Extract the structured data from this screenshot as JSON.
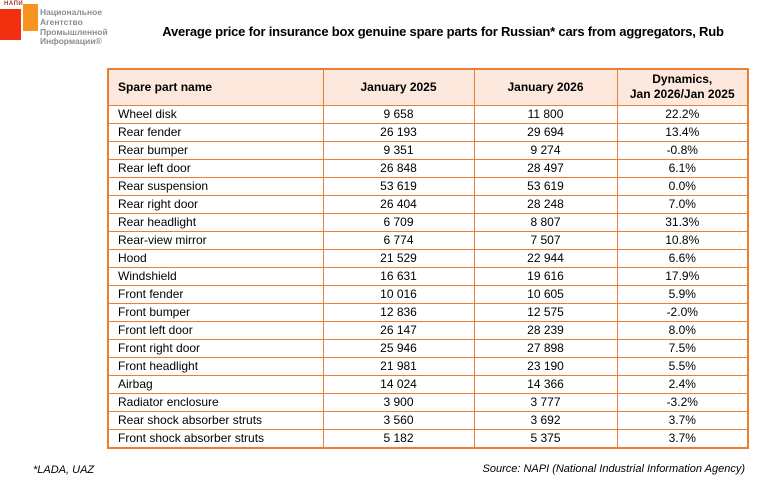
{
  "logo": {
    "abbr": "НАПИ",
    "lines": [
      "Национальное",
      "Агентство",
      "Промышленной",
      "Информации®"
    ]
  },
  "title": "Average price for insurance box genuine spare parts for Russian* cars from aggregators, Rub",
  "table": {
    "headers": [
      "Spare part name",
      "January 2025",
      "January 2026",
      "Dynamics,\nJan 2026/Jan 2025"
    ],
    "rows": [
      [
        "Wheel disk",
        "9 658",
        "11 800",
        "22.2%"
      ],
      [
        "Rear fender",
        "26 193",
        "29 694",
        "13.4%"
      ],
      [
        "Rear bumper",
        "9 351",
        "9 274",
        "-0.8%"
      ],
      [
        "Rear left door",
        "26 848",
        "28 497",
        "6.1%"
      ],
      [
        "Rear suspension",
        "53 619",
        "53 619",
        "0.0%"
      ],
      [
        "Rear right door",
        "26 404",
        "28 248",
        "7.0%"
      ],
      [
        "Rear headlight",
        "6 709",
        "8 807",
        "31.3%"
      ],
      [
        "Rear-view mirror",
        "6 774",
        "7 507",
        "10.8%"
      ],
      [
        "Hood",
        "21 529",
        "22 944",
        "6.6%"
      ],
      [
        "Windshield",
        "16 631",
        "19 616",
        "17.9%"
      ],
      [
        "Front fender",
        "10 016",
        "10 605",
        "5.9%"
      ],
      [
        "Front bumper",
        "12 836",
        "12 575",
        "-2.0%"
      ],
      [
        "Front left door",
        "26 147",
        "28 239",
        "8.0%"
      ],
      [
        "Front right door",
        "25 946",
        "27 898",
        "7.5%"
      ],
      [
        "Front headlight",
        "21 981",
        "23 190",
        "5.5%"
      ],
      [
        "Airbag",
        "14 024",
        "14 366",
        "2.4%"
      ],
      [
        "Radiator enclosure",
        "3 900",
        "3 777",
        "-3.2%"
      ],
      [
        "Rear shock absorber struts",
        "3 560",
        "3 692",
        "3.7%"
      ],
      [
        "Front shock absorber struts",
        "5 182",
        "5 375",
        "3.7%"
      ]
    ]
  },
  "footnote": "*LADA, UAZ",
  "source": "Source: NAPI (National Industrial Information Agency)",
  "colors": {
    "table_border": "#ED7D31",
    "header_bg": "#FCE8DC",
    "logo_red": "#F2300F",
    "logo_orange": "#F79421",
    "logo_text_gray": "#8C8C8C"
  },
  "chart_data": {
    "type": "table",
    "title": "Average price for insurance box genuine spare parts for Russian* cars from aggregators, Rub",
    "columns": [
      "Spare part name",
      "January 2025",
      "January 2026",
      "Dynamics, Jan 2026/Jan 2025"
    ],
    "rows": [
      {
        "name": "Wheel disk",
        "jan_2025": 9658,
        "jan_2026": 11800,
        "dynamics_pct": 22.2
      },
      {
        "name": "Rear fender",
        "jan_2025": 26193,
        "jan_2026": 29694,
        "dynamics_pct": 13.4
      },
      {
        "name": "Rear bumper",
        "jan_2025": 9351,
        "jan_2026": 9274,
        "dynamics_pct": -0.8
      },
      {
        "name": "Rear left door",
        "jan_2025": 26848,
        "jan_2026": 28497,
        "dynamics_pct": 6.1
      },
      {
        "name": "Rear suspension",
        "jan_2025": 53619,
        "jan_2026": 53619,
        "dynamics_pct": 0.0
      },
      {
        "name": "Rear right door",
        "jan_2025": 26404,
        "jan_2026": 28248,
        "dynamics_pct": 7.0
      },
      {
        "name": "Rear headlight",
        "jan_2025": 6709,
        "jan_2026": 8807,
        "dynamics_pct": 31.3
      },
      {
        "name": "Rear-view mirror",
        "jan_2025": 6774,
        "jan_2026": 7507,
        "dynamics_pct": 10.8
      },
      {
        "name": "Hood",
        "jan_2025": 21529,
        "jan_2026": 22944,
        "dynamics_pct": 6.6
      },
      {
        "name": "Windshield",
        "jan_2025": 16631,
        "jan_2026": 19616,
        "dynamics_pct": 17.9
      },
      {
        "name": "Front fender",
        "jan_2025": 10016,
        "jan_2026": 10605,
        "dynamics_pct": 5.9
      },
      {
        "name": "Front bumper",
        "jan_2025": 12836,
        "jan_2026": 12575,
        "dynamics_pct": -2.0
      },
      {
        "name": "Front left door",
        "jan_2025": 26147,
        "jan_2026": 28239,
        "dynamics_pct": 8.0
      },
      {
        "name": "Front right door",
        "jan_2025": 25946,
        "jan_2026": 27898,
        "dynamics_pct": 7.5
      },
      {
        "name": "Front headlight",
        "jan_2025": 21981,
        "jan_2026": 23190,
        "dynamics_pct": 5.5
      },
      {
        "name": "Airbag",
        "jan_2025": 14024,
        "jan_2026": 14366,
        "dynamics_pct": 2.4
      },
      {
        "name": "Radiator enclosure",
        "jan_2025": 3900,
        "jan_2026": 3777,
        "dynamics_pct": -3.2
      },
      {
        "name": "Rear shock absorber struts",
        "jan_2025": 3560,
        "jan_2026": 3692,
        "dynamics_pct": 3.7
      },
      {
        "name": "Front shock absorber struts",
        "jan_2025": 5182,
        "jan_2026": 5375,
        "dynamics_pct": 3.7
      }
    ],
    "footnote": "*LADA, UAZ",
    "source": "Source: NAPI (National Industrial Information Agency)"
  }
}
